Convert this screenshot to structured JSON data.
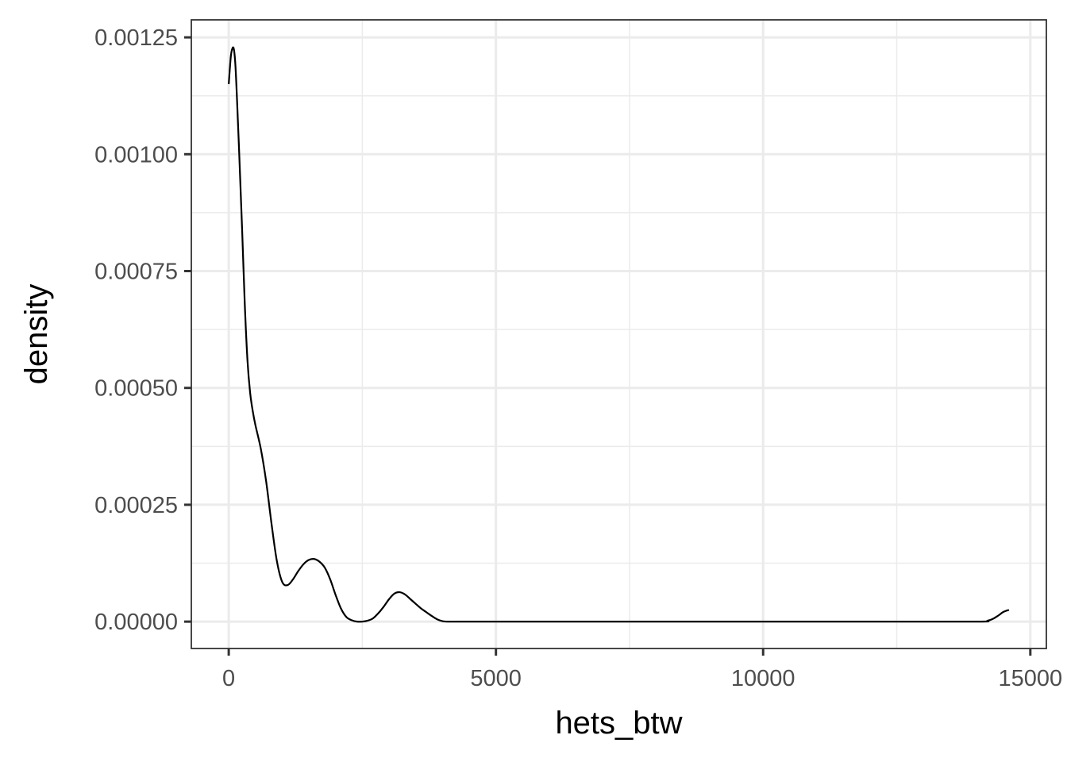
{
  "chart_data": {
    "type": "line",
    "title": "",
    "xlabel": "hets_btw",
    "ylabel": "density",
    "xlim": [
      -700,
      15300
    ],
    "ylim": [
      -5.75e-05,
      0.0012875
    ],
    "x_ticks": [
      0,
      5000,
      10000,
      15000
    ],
    "x_tick_labels": [
      "0",
      "5000",
      "10000",
      "15000"
    ],
    "y_ticks": [
      0,
      0.00025,
      0.0005,
      0.00075,
      0.001,
      0.00125
    ],
    "y_tick_labels": [
      "0.00000",
      "0.00025",
      "0.00050",
      "0.00075",
      "0.00100",
      "0.00125"
    ],
    "grid": true,
    "legend": "none",
    "series": [
      {
        "x": [
          0,
          40,
          75,
          100,
          125,
          150,
          200,
          250,
          300,
          350,
          400,
          450,
          500,
          600,
          700,
          800,
          900,
          1000,
          1100,
          1200,
          1300,
          1400,
          1500,
          1600,
          1700,
          1800,
          1900,
          2000,
          2100,
          2200,
          2300,
          2400,
          2500,
          2600,
          2700,
          2800,
          2900,
          3000,
          3100,
          3200,
          3300,
          3400,
          3500,
          3600,
          3700,
          3800,
          3900,
          4000,
          4100,
          4300,
          5000,
          7000,
          10000,
          12000,
          14000,
          14200,
          14300,
          14400,
          14500,
          14600
        ],
        "y": [
          0.00115,
          0.00121,
          0.001228,
          0.001222,
          0.00119,
          0.00113,
          0.00099,
          0.00084,
          0.00068,
          0.00056,
          0.00049,
          0.00045,
          0.00042,
          0.00037,
          0.0003,
          0.00021,
          0.00013,
          8.5e-05,
          7.8e-05,
          9e-05,
          0.000108,
          0.000123,
          0.000132,
          0.000134,
          0.000128,
          0.000115,
          9e-05,
          5.7e-05,
          2.8e-05,
          1e-05,
          3e-06,
          0.0,
          0.0,
          2e-06,
          7e-06,
          1.8e-05,
          3.2e-05,
          4.8e-05,
          6e-05,
          6.3e-05,
          5.8e-05,
          4.8e-05,
          3.8e-05,
          2.8e-05,
          2e-05,
          1.2e-05,
          5e-06,
          1e-06,
          0.0,
          0.0,
          0.0,
          0.0,
          0.0,
          0.0,
          0.0,
          2e-06,
          6e-06,
          1.3e-05,
          2.1e-05,
          2.5e-05
        ]
      }
    ]
  }
}
